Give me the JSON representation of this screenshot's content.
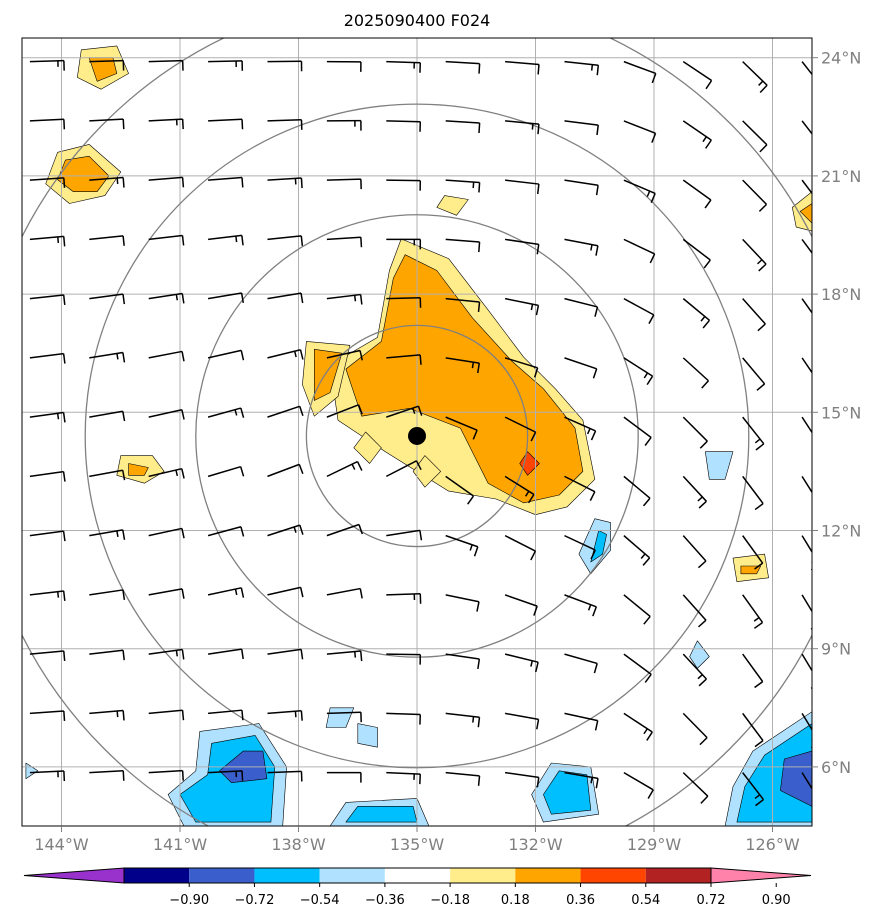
{
  "chart_data": {
    "type": "contourf_map",
    "title": "2025090400 F024",
    "x_ticks": [
      {
        "value": -144,
        "label": "144°W"
      },
      {
        "value": -141,
        "label": "141°W"
      },
      {
        "value": -138,
        "label": "138°W"
      },
      {
        "value": -135,
        "label": "135°W"
      },
      {
        "value": -132,
        "label": "132°W"
      },
      {
        "value": -129,
        "label": "129°W"
      },
      {
        "value": -126,
        "label": "126°W"
      }
    ],
    "y_ticks": [
      {
        "value": 24,
        "label": "24°N"
      },
      {
        "value": 21,
        "label": "21°N"
      },
      {
        "value": 18,
        "label": "18°N"
      },
      {
        "value": 15,
        "label": "15°N"
      },
      {
        "value": 12,
        "label": "12°N"
      },
      {
        "value": 9,
        "label": "9°N"
      },
      {
        "value": 6,
        "label": "6°N"
      }
    ],
    "xlim": [
      -145.0,
      -125.0
    ],
    "ylim": [
      4.5,
      24.5
    ],
    "grid": true,
    "center": {
      "lon": -135.0,
      "lat": 14.4
    },
    "range_rings_deg": [
      2.8,
      5.6,
      8.4,
      11.2
    ],
    "colorbar": {
      "ticks": [
        "−0.90",
        "−0.72",
        "−0.54",
        "−0.36",
        "−0.18",
        "0.18",
        "0.36",
        "0.54",
        "0.72",
        "0.90"
      ],
      "colors": [
        "#9932cc",
        "#00008b",
        "#3a5fcd",
        "#00bfff",
        "#b0e2ff",
        "#ffffff",
        "#ffec8b",
        "#ffa500",
        "#ff4500",
        "#b22222",
        "#ff82ab"
      ]
    },
    "positive_regions": [
      {
        "level": 0.18,
        "points": [
          [
            -135.4,
            19.4
          ],
          [
            -134.2,
            18.9
          ],
          [
            -133.2,
            17.6
          ],
          [
            -132.3,
            16.4
          ],
          [
            -131.5,
            15.6
          ],
          [
            -130.8,
            14.8
          ],
          [
            -130.5,
            13.3
          ],
          [
            -131.2,
            12.6
          ],
          [
            -132.0,
            12.4
          ],
          [
            -133.0,
            12.8
          ],
          [
            -134.2,
            13.0
          ],
          [
            -135.8,
            14.0
          ],
          [
            -137.0,
            14.8
          ],
          [
            -137.2,
            16.2
          ],
          [
            -136.0,
            16.9
          ],
          [
            -135.7,
            18.6
          ]
        ]
      },
      {
        "level": 0.36,
        "points": [
          [
            -135.3,
            19.0
          ],
          [
            -134.5,
            18.6
          ],
          [
            -133.6,
            17.4
          ],
          [
            -132.6,
            16.3
          ],
          [
            -131.8,
            15.6
          ],
          [
            -131.0,
            14.6
          ],
          [
            -130.8,
            13.5
          ],
          [
            -131.4,
            12.9
          ],
          [
            -132.3,
            12.7
          ],
          [
            -133.2,
            13.2
          ],
          [
            -133.9,
            14.6
          ],
          [
            -135.2,
            15.1
          ],
          [
            -136.4,
            14.9
          ],
          [
            -136.8,
            16.1
          ],
          [
            -135.9,
            16.8
          ],
          [
            -135.6,
            18.4
          ]
        ]
      },
      {
        "level": 0.18,
        "points": [
          [
            -137.8,
            16.8
          ],
          [
            -136.7,
            16.7
          ],
          [
            -137.0,
            15.4
          ],
          [
            -137.6,
            14.9
          ],
          [
            -137.9,
            15.7
          ]
        ]
      },
      {
        "level": 0.36,
        "points": [
          [
            -137.6,
            16.6
          ],
          [
            -136.9,
            16.5
          ],
          [
            -137.2,
            15.5
          ],
          [
            -137.6,
            15.3
          ]
        ]
      },
      {
        "level": 0.18,
        "points": [
          [
            -143.5,
            24.2
          ],
          [
            -142.6,
            24.3
          ],
          [
            -142.3,
            23.6
          ],
          [
            -143.0,
            23.2
          ],
          [
            -143.6,
            23.5
          ]
        ]
      },
      {
        "level": 0.36,
        "points": [
          [
            -143.3,
            24.0
          ],
          [
            -142.7,
            24.0
          ],
          [
            -142.6,
            23.6
          ],
          [
            -143.1,
            23.4
          ]
        ]
      },
      {
        "level": 0.18,
        "points": [
          [
            -144.1,
            21.6
          ],
          [
            -143.3,
            21.8
          ],
          [
            -142.5,
            21.1
          ],
          [
            -142.9,
            20.5
          ],
          [
            -143.8,
            20.3
          ],
          [
            -144.4,
            20.8
          ]
        ]
      },
      {
        "level": 0.36,
        "points": [
          [
            -143.9,
            21.4
          ],
          [
            -143.3,
            21.5
          ],
          [
            -142.8,
            21.0
          ],
          [
            -143.1,
            20.6
          ],
          [
            -143.7,
            20.6
          ],
          [
            -144.1,
            20.9
          ]
        ]
      },
      {
        "level": 0.18,
        "points": [
          [
            -142.5,
            13.9
          ],
          [
            -141.7,
            13.9
          ],
          [
            -141.4,
            13.5
          ],
          [
            -141.9,
            13.2
          ],
          [
            -142.6,
            13.4
          ]
        ]
      },
      {
        "level": 0.36,
        "points": [
          [
            -142.3,
            13.7
          ],
          [
            -141.8,
            13.6
          ],
          [
            -141.9,
            13.4
          ],
          [
            -142.3,
            13.4
          ]
        ]
      },
      {
        "level": 0.18,
        "points": [
          [
            -127.0,
            11.3
          ],
          [
            -126.2,
            11.4
          ],
          [
            -126.1,
            10.8
          ],
          [
            -126.9,
            10.7
          ]
        ]
      },
      {
        "level": 0.36,
        "points": [
          [
            -126.8,
            11.1
          ],
          [
            -126.3,
            11.1
          ],
          [
            -126.4,
            10.9
          ],
          [
            -126.8,
            10.9
          ]
        ]
      },
      {
        "level": 0.18,
        "points": [
          [
            -125.5,
            20.2
          ],
          [
            -125.0,
            20.6
          ],
          [
            -125.0,
            19.6
          ],
          [
            -125.4,
            19.7
          ]
        ]
      },
      {
        "level": 0.36,
        "points": [
          [
            -125.3,
            20.1
          ],
          [
            -125.0,
            20.3
          ],
          [
            -125.0,
            19.8
          ]
        ]
      },
      {
        "level": 0.18,
        "points": [
          [
            -134.3,
            20.5
          ],
          [
            -133.7,
            20.4
          ],
          [
            -134.0,
            20.0
          ],
          [
            -134.5,
            20.2
          ]
        ]
      },
      {
        "level": 0.18,
        "points": [
          [
            -136.3,
            14.5
          ],
          [
            -135.9,
            14.1
          ],
          [
            -136.2,
            13.7
          ],
          [
            -136.6,
            14.1
          ]
        ]
      },
      {
        "level": 0.18,
        "points": [
          [
            -134.8,
            13.9
          ],
          [
            -134.4,
            13.5
          ],
          [
            -134.8,
            13.1
          ],
          [
            -135.1,
            13.5
          ]
        ]
      },
      {
        "level": 0.54,
        "points": [
          [
            -132.2,
            14.0
          ],
          [
            -131.9,
            13.7
          ],
          [
            -132.2,
            13.4
          ],
          [
            -132.4,
            13.7
          ]
        ]
      }
    ],
    "negative_regions": [
      {
        "level": -0.18,
        "points": [
          [
            -140.5,
            6.9
          ],
          [
            -139.0,
            7.1
          ],
          [
            -138.3,
            6.0
          ],
          [
            -138.4,
            4.5
          ],
          [
            -140.9,
            4.5
          ],
          [
            -141.3,
            5.3
          ],
          [
            -140.6,
            5.9
          ]
        ]
      },
      {
        "level": -0.36,
        "points": [
          [
            -140.2,
            6.6
          ],
          [
            -139.1,
            6.8
          ],
          [
            -138.6,
            6.0
          ],
          [
            -138.7,
            4.6
          ],
          [
            -140.6,
            4.6
          ],
          [
            -141.0,
            5.3
          ],
          [
            -140.3,
            5.8
          ]
        ]
      },
      {
        "level": -0.54,
        "points": [
          [
            -139.4,
            6.4
          ],
          [
            -138.9,
            6.4
          ],
          [
            -138.8,
            5.7
          ],
          [
            -139.7,
            5.6
          ],
          [
            -140.0,
            5.9
          ]
        ]
      },
      {
        "level": -0.18,
        "points": [
          [
            -136.8,
            5.1
          ],
          [
            -135.0,
            5.2
          ],
          [
            -134.7,
            4.5
          ],
          [
            -137.2,
            4.5
          ]
        ]
      },
      {
        "level": -0.36,
        "points": [
          [
            -136.5,
            5.0
          ],
          [
            -135.1,
            5.0
          ],
          [
            -135.0,
            4.6
          ],
          [
            -136.8,
            4.6
          ]
        ]
      },
      {
        "level": -0.18,
        "points": [
          [
            -131.6,
            6.1
          ],
          [
            -130.6,
            6.0
          ],
          [
            -130.4,
            4.8
          ],
          [
            -131.8,
            4.6
          ],
          [
            -132.1,
            5.3
          ]
        ]
      },
      {
        "level": -0.36,
        "points": [
          [
            -131.4,
            5.9
          ],
          [
            -130.7,
            5.8
          ],
          [
            -130.6,
            4.9
          ],
          [
            -131.6,
            4.8
          ],
          [
            -131.8,
            5.3
          ]
        ]
      },
      {
        "level": -0.18,
        "points": [
          [
            -126.5,
            6.4
          ],
          [
            -125.0,
            7.4
          ],
          [
            -125.0,
            4.5
          ],
          [
            -127.2,
            4.5
          ],
          [
            -127.0,
            5.5
          ]
        ]
      },
      {
        "level": -0.36,
        "points": [
          [
            -126.2,
            6.3
          ],
          [
            -125.0,
            7.1
          ],
          [
            -125.0,
            4.6
          ],
          [
            -126.9,
            4.6
          ],
          [
            -126.7,
            5.5
          ]
        ]
      },
      {
        "level": -0.54,
        "points": [
          [
            -125.7,
            6.2
          ],
          [
            -125.0,
            6.4
          ],
          [
            -125.0,
            5.0
          ],
          [
            -125.8,
            5.4
          ]
        ]
      },
      {
        "level": -0.18,
        "points": [
          [
            -130.5,
            12.3
          ],
          [
            -130.1,
            12.2
          ],
          [
            -130.1,
            11.5
          ],
          [
            -130.6,
            10.9
          ],
          [
            -130.9,
            11.4
          ]
        ]
      },
      {
        "level": -0.36,
        "points": [
          [
            -130.4,
            12.0
          ],
          [
            -130.2,
            11.9
          ],
          [
            -130.3,
            11.4
          ],
          [
            -130.6,
            11.2
          ]
        ]
      },
      {
        "level": -0.18,
        "points": [
          [
            -127.7,
            14.0
          ],
          [
            -127.0,
            14.0
          ],
          [
            -127.2,
            13.3
          ],
          [
            -127.6,
            13.3
          ]
        ]
      },
      {
        "level": -0.18,
        "points": [
          [
            -136.5,
            7.1
          ],
          [
            -136.0,
            7.0
          ],
          [
            -136.0,
            6.5
          ],
          [
            -136.5,
            6.6
          ]
        ]
      },
      {
        "level": -0.18,
        "points": [
          [
            -137.2,
            7.5
          ],
          [
            -136.6,
            7.5
          ],
          [
            -136.8,
            7.0
          ],
          [
            -137.3,
            7.0
          ]
        ]
      },
      {
        "level": -0.18,
        "points": [
          [
            -127.9,
            9.2
          ],
          [
            -127.6,
            8.8
          ],
          [
            -127.9,
            8.5
          ],
          [
            -128.1,
            8.8
          ]
        ]
      },
      {
        "level": -0.18,
        "points": [
          [
            -144.9,
            6.1
          ],
          [
            -144.6,
            5.9
          ],
          [
            -144.9,
            5.7
          ]
        ]
      }
    ]
  }
}
